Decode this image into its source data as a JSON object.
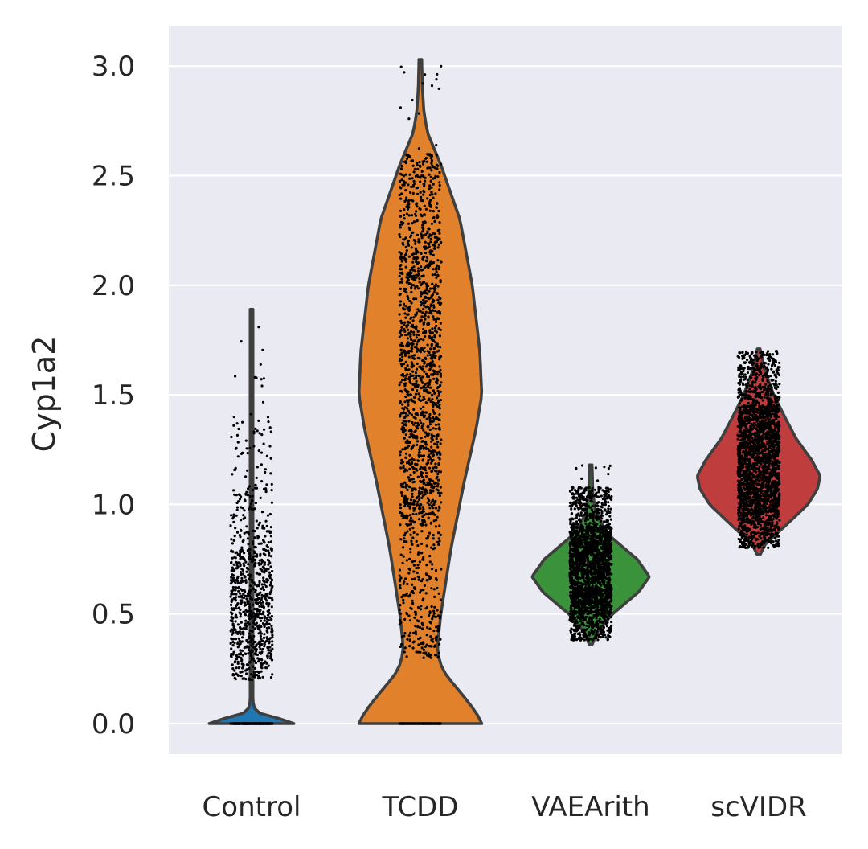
{
  "chart_data": {
    "type": "violin",
    "ylabel": "Cyp1a2",
    "ylim": [
      -0.14,
      3.18
    ],
    "yticks": [
      0.0,
      0.5,
      1.0,
      1.5,
      2.0,
      2.5,
      3.0
    ],
    "ytick_labels": [
      "0.0",
      "0.5",
      "1.0",
      "1.5",
      "2.0",
      "2.5",
      "3.0"
    ],
    "grid": true,
    "categories": [
      "Control",
      "TCDD",
      "VAEArith",
      "scVIDR"
    ],
    "series": [
      {
        "category": "Control",
        "color": "#1f77b4",
        "min": 0.0,
        "max": 1.89,
        "density": [
          [
            0.0,
            0.62
          ],
          [
            0.02,
            0.45
          ],
          [
            0.04,
            0.16
          ],
          [
            0.06,
            0.05
          ],
          [
            0.1,
            0.02
          ],
          [
            0.3,
            0.02
          ],
          [
            0.6,
            0.02
          ],
          [
            1.0,
            0.02
          ],
          [
            1.5,
            0.02
          ],
          [
            1.89,
            0.02
          ]
        ],
        "points": {
          "zero_count": 300,
          "bands": [
            [
              0.2,
              0.8,
              700
            ],
            [
              0.8,
              1.1,
              120
            ],
            [
              1.1,
              1.4,
              50
            ],
            [
              1.4,
              1.9,
              12
            ]
          ]
        }
      },
      {
        "category": "TCDD",
        "color": "#e1812c",
        "min": 0.0,
        "max": 3.03,
        "density": [
          [
            0.0,
            0.9
          ],
          [
            0.05,
            0.82
          ],
          [
            0.13,
            0.62
          ],
          [
            0.22,
            0.38
          ],
          [
            0.28,
            0.28
          ],
          [
            0.35,
            0.25
          ],
          [
            0.5,
            0.3
          ],
          [
            0.8,
            0.45
          ],
          [
            1.1,
            0.64
          ],
          [
            1.35,
            0.82
          ],
          [
            1.5,
            0.9
          ],
          [
            1.7,
            0.87
          ],
          [
            2.0,
            0.76
          ],
          [
            2.3,
            0.58
          ],
          [
            2.55,
            0.3
          ],
          [
            2.7,
            0.1
          ],
          [
            2.8,
            0.05
          ],
          [
            2.9,
            0.03
          ],
          [
            3.03,
            0.02
          ]
        ],
        "points": {
          "zero_count": 150,
          "bands": [
            [
              0.3,
              0.9,
              250
            ],
            [
              0.9,
              2.2,
              1200
            ],
            [
              2.2,
              2.6,
              250
            ],
            [
              2.6,
              3.02,
              15
            ]
          ]
        }
      },
      {
        "category": "VAEArith",
        "color": "#3a923a",
        "min": 0.36,
        "max": 1.18,
        "density": [
          [
            0.36,
            0.02
          ],
          [
            0.42,
            0.1
          ],
          [
            0.5,
            0.32
          ],
          [
            0.6,
            0.7
          ],
          [
            0.67,
            0.86
          ],
          [
            0.75,
            0.68
          ],
          [
            0.85,
            0.3
          ],
          [
            0.95,
            0.08
          ],
          [
            1.05,
            0.03
          ],
          [
            1.18,
            0.02
          ]
        ],
        "points": {
          "zero_count": 0,
          "bands": [
            [
              0.38,
              0.5,
              250
            ],
            [
              0.5,
              0.9,
              1700
            ],
            [
              0.9,
              1.08,
              300
            ],
            [
              1.08,
              1.18,
              10
            ]
          ]
        }
      },
      {
        "category": "scVIDR",
        "color": "#c03d3e",
        "min": 0.77,
        "max": 1.71,
        "density": [
          [
            0.77,
            0.02
          ],
          [
            0.82,
            0.1
          ],
          [
            0.9,
            0.38
          ],
          [
            1.0,
            0.72
          ],
          [
            1.07,
            0.86
          ],
          [
            1.13,
            0.9
          ],
          [
            1.2,
            0.78
          ],
          [
            1.3,
            0.55
          ],
          [
            1.4,
            0.38
          ],
          [
            1.5,
            0.22
          ],
          [
            1.6,
            0.1
          ],
          [
            1.71,
            0.02
          ]
        ],
        "points": {
          "zero_count": 0,
          "bands": [
            [
              0.8,
              0.95,
              300
            ],
            [
              0.95,
              1.45,
              1700
            ],
            [
              1.45,
              1.7,
              350
            ]
          ]
        }
      }
    ]
  }
}
